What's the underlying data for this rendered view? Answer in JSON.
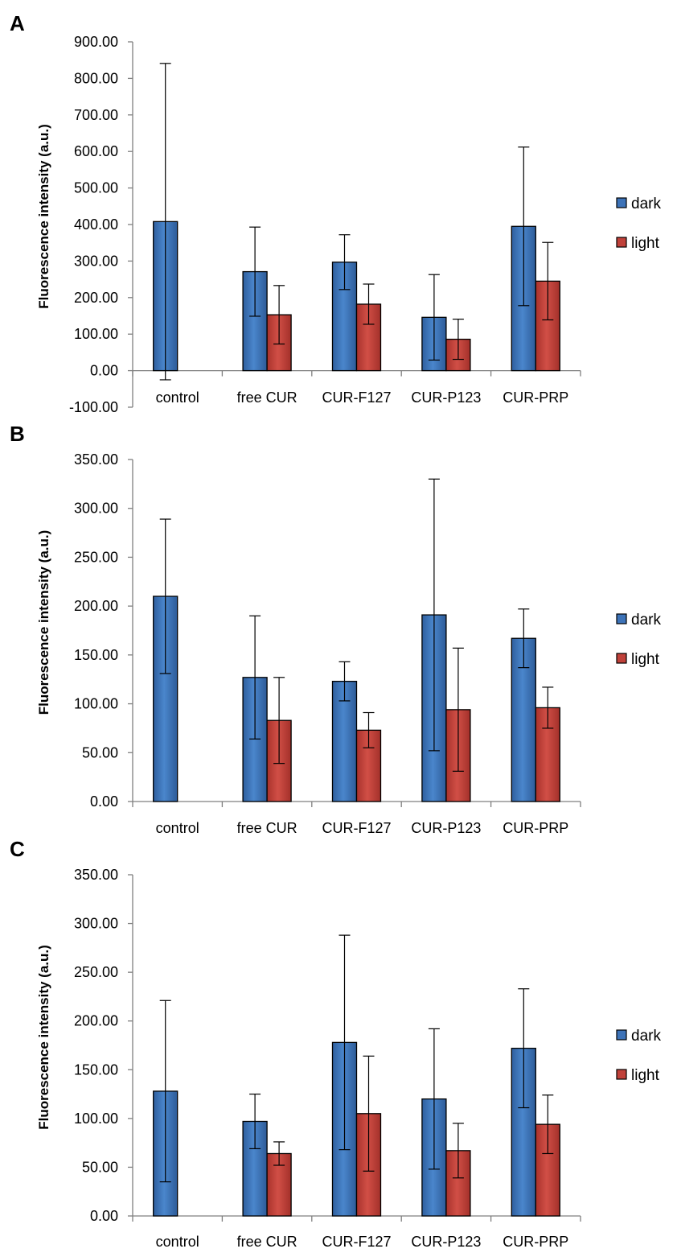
{
  "colors": {
    "dark": "#3d73b8",
    "light": "#c0413a"
  },
  "chart_data": [
    {
      "panel": "A",
      "type": "bar",
      "ylabel": "Fluorescence intensity (a.u.)",
      "xlabel": "",
      "ylim": [
        -100,
        900
      ],
      "yticks": [
        -100,
        0,
        100,
        200,
        300,
        400,
        500,
        600,
        700,
        800,
        900
      ],
      "ytick_labels": [
        "-100.00",
        "0.00",
        "100.00",
        "200.00",
        "300.00",
        "400.00",
        "500.00",
        "600.00",
        "700.00",
        "800.00",
        "900.00"
      ],
      "categories": [
        "control",
        "free CUR",
        "CUR-F127",
        "CUR-P123",
        "CUR-PRP"
      ],
      "series": [
        {
          "name": "dark",
          "values": [
            408,
            271,
            297,
            146,
            395
          ],
          "errors": [
            433,
            122,
            75,
            117,
            217
          ]
        },
        {
          "name": "light",
          "values": [
            null,
            153,
            182,
            86,
            245
          ],
          "errors": [
            null,
            80,
            55,
            55,
            106
          ]
        }
      ],
      "legend": [
        "dark",
        "light"
      ]
    },
    {
      "panel": "B",
      "type": "bar",
      "ylabel": "Fluorescence intensity (a.u.)",
      "xlabel": "",
      "ylim": [
        0,
        350
      ],
      "yticks": [
        0,
        50,
        100,
        150,
        200,
        250,
        300,
        350
      ],
      "ytick_labels": [
        "0.00",
        "50.00",
        "100.00",
        "150.00",
        "200.00",
        "250.00",
        "300.00",
        "350.00"
      ],
      "categories": [
        "control",
        "free CUR",
        "CUR-F127",
        "CUR-P123",
        "CUR-PRP"
      ],
      "series": [
        {
          "name": "dark",
          "values": [
            210,
            127,
            123,
            191,
            167
          ],
          "errors": [
            79,
            63,
            20,
            139,
            30
          ]
        },
        {
          "name": "light",
          "values": [
            null,
            83,
            73,
            94,
            96
          ],
          "errors": [
            null,
            44,
            18,
            63,
            21
          ]
        }
      ],
      "legend": [
        "dark",
        "light"
      ]
    },
    {
      "panel": "C",
      "type": "bar",
      "ylabel": "Fluorescence intensity (a.u.)",
      "xlabel": "",
      "ylim": [
        0,
        350
      ],
      "yticks": [
        0,
        50,
        100,
        150,
        200,
        250,
        300,
        350
      ],
      "ytick_labels": [
        "0.00",
        "50.00",
        "100.00",
        "150.00",
        "200.00",
        "250.00",
        "300.00",
        "350.00"
      ],
      "categories": [
        "control",
        "free CUR",
        "CUR-F127",
        "CUR-P123",
        "CUR-PRP"
      ],
      "series": [
        {
          "name": "dark",
          "values": [
            128,
            97,
            178,
            120,
            172
          ],
          "errors": [
            93,
            28,
            110,
            72,
            61
          ]
        },
        {
          "name": "light",
          "values": [
            null,
            64,
            105,
            67,
            94
          ],
          "errors": [
            null,
            12,
            59,
            28,
            30
          ]
        }
      ],
      "legend": [
        "dark",
        "light"
      ]
    }
  ]
}
